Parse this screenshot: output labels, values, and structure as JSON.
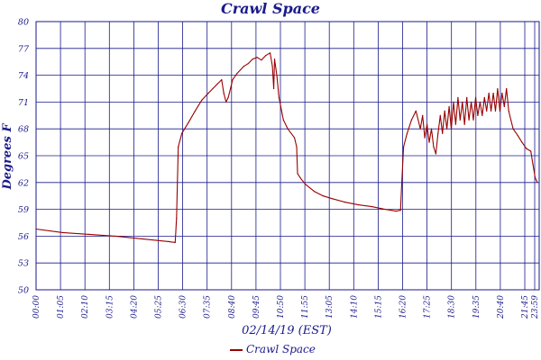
{
  "chart_data": {
    "type": "line",
    "title": "Crawl Space",
    "xlabel": "02/14/19 (EST)",
    "ylabel": "Degrees F",
    "ylim": [
      50,
      80
    ],
    "y_ticks": [
      "50",
      "53",
      "56",
      "59",
      "62",
      "65",
      "68",
      "71",
      "74",
      "77",
      "80"
    ],
    "x_ticks": [
      "00:00",
      "01:05",
      "02:10",
      "03:15",
      "04:20",
      "05:25",
      "06:30",
      "07:35",
      "08:40",
      "09:45",
      "10:50",
      "11:55",
      "13:05",
      "14:10",
      "15:15",
      "16:20",
      "17:25",
      "18:30",
      "19:35",
      "20:40",
      "21:45",
      "23:55",
      "23:59"
    ],
    "grid": true,
    "legend_position": "bottom-center",
    "colors": {
      "series": "#990000",
      "grid": "#1a1a8c",
      "text": "#1a1a8c"
    },
    "series": [
      {
        "name": "Crawl Space",
        "points": [
          [
            0,
            56.8
          ],
          [
            60,
            56.4
          ],
          [
            120,
            56.2
          ],
          [
            180,
            56.0
          ],
          [
            240,
            55.7
          ],
          [
            300,
            55.4
          ],
          [
            315,
            55.3
          ],
          [
            318,
            58.0
          ],
          [
            322,
            66.0
          ],
          [
            330,
            67.5
          ],
          [
            345,
            68.7
          ],
          [
            360,
            70.0
          ],
          [
            375,
            71.2
          ],
          [
            390,
            72.0
          ],
          [
            400,
            72.5
          ],
          [
            410,
            73.0
          ],
          [
            420,
            73.5
          ],
          [
            425,
            72.0
          ],
          [
            430,
            71.0
          ],
          [
            435,
            71.5
          ],
          [
            440,
            72.5
          ],
          [
            445,
            73.5
          ],
          [
            455,
            74.2
          ],
          [
            470,
            75.0
          ],
          [
            480,
            75.3
          ],
          [
            490,
            75.8
          ],
          [
            500,
            76.0
          ],
          [
            510,
            75.7
          ],
          [
            520,
            76.2
          ],
          [
            530,
            76.5
          ],
          [
            535,
            75.0
          ],
          [
            538,
            72.5
          ],
          [
            540,
            75.8
          ],
          [
            545,
            74.0
          ],
          [
            550,
            71.5
          ],
          [
            560,
            69.0
          ],
          [
            570,
            68.0
          ],
          [
            585,
            67.0
          ],
          [
            590,
            66.0
          ],
          [
            592,
            63.0
          ],
          [
            600,
            62.4
          ],
          [
            610,
            61.8
          ],
          [
            630,
            61.0
          ],
          [
            650,
            60.5
          ],
          [
            670,
            60.2
          ],
          [
            700,
            59.8
          ],
          [
            730,
            59.5
          ],
          [
            760,
            59.3
          ],
          [
            790,
            59.0
          ],
          [
            815,
            58.8
          ],
          [
            825,
            58.9
          ],
          [
            828,
            62.0
          ],
          [
            832,
            66.0
          ],
          [
            840,
            67.5
          ],
          [
            850,
            69.0
          ],
          [
            860,
            70.0
          ],
          [
            870,
            68.0
          ],
          [
            875,
            69.5
          ],
          [
            880,
            67.0
          ],
          [
            885,
            68.5
          ],
          [
            890,
            66.5
          ],
          [
            895,
            68.0
          ],
          [
            900,
            66.0
          ],
          [
            905,
            65.2
          ],
          [
            910,
            67.5
          ],
          [
            915,
            69.5
          ],
          [
            920,
            67.5
          ],
          [
            925,
            70.0
          ],
          [
            930,
            68.0
          ],
          [
            935,
            70.5
          ],
          [
            940,
            68.0
          ],
          [
            945,
            71.0
          ],
          [
            950,
            68.5
          ],
          [
            955,
            71.5
          ],
          [
            960,
            69.0
          ],
          [
            965,
            71.0
          ],
          [
            970,
            68.5
          ],
          [
            975,
            71.5
          ],
          [
            980,
            69.0
          ],
          [
            985,
            71.0
          ],
          [
            990,
            69.0
          ],
          [
            995,
            71.5
          ],
          [
            1000,
            69.5
          ],
          [
            1005,
            71.0
          ],
          [
            1010,
            69.5
          ],
          [
            1015,
            71.5
          ],
          [
            1020,
            70.0
          ],
          [
            1025,
            72.0
          ],
          [
            1030,
            70.0
          ],
          [
            1035,
            72.0
          ],
          [
            1040,
            70.0
          ],
          [
            1045,
            72.5
          ],
          [
            1050,
            70.0
          ],
          [
            1055,
            72.0
          ],
          [
            1060,
            70.5
          ],
          [
            1065,
            72.5
          ],
          [
            1070,
            70.0
          ],
          [
            1075,
            69.0
          ],
          [
            1080,
            68.0
          ],
          [
            1090,
            67.3
          ],
          [
            1100,
            66.5
          ],
          [
            1110,
            65.8
          ],
          [
            1120,
            65.5
          ],
          [
            1125,
            64.0
          ],
          [
            1130,
            62.5
          ],
          [
            1135,
            62.0
          ]
        ]
      }
    ]
  }
}
